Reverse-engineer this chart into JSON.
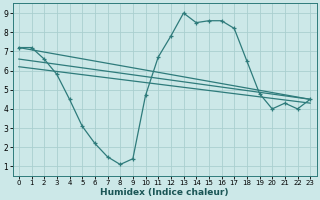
{
  "xlabel": "Humidex (Indice chaleur)",
  "bg_color": "#cce8e8",
  "line_color": "#2e7b7b",
  "grid_color": "#aacfcf",
  "xlim": [
    -0.5,
    23.5
  ],
  "ylim": [
    0.5,
    9.5
  ],
  "xticks": [
    0,
    1,
    2,
    3,
    4,
    5,
    6,
    7,
    8,
    9,
    10,
    11,
    12,
    13,
    14,
    15,
    16,
    17,
    18,
    19,
    20,
    21,
    22,
    23
  ],
  "yticks": [
    1,
    2,
    3,
    4,
    5,
    6,
    7,
    8,
    9
  ],
  "line1_x": [
    0,
    1,
    2,
    3,
    4,
    5,
    6,
    7,
    8,
    9,
    10,
    11,
    12,
    13,
    14,
    15,
    16,
    17,
    18,
    19,
    20,
    21,
    22,
    23
  ],
  "line1_y": [
    7.2,
    7.2,
    6.6,
    5.8,
    4.5,
    3.1,
    2.2,
    1.5,
    1.1,
    1.4,
    4.7,
    6.7,
    7.8,
    9.0,
    8.5,
    8.6,
    8.6,
    8.2,
    6.5,
    4.8,
    4.0,
    4.3,
    4.0,
    4.5
  ],
  "line2_x": [
    0,
    23
  ],
  "line2_y": [
    7.2,
    4.5
  ],
  "line3_x": [
    0,
    23
  ],
  "line3_y": [
    6.6,
    4.5
  ],
  "line4_x": [
    0,
    23
  ],
  "line4_y": [
    6.2,
    4.3
  ]
}
